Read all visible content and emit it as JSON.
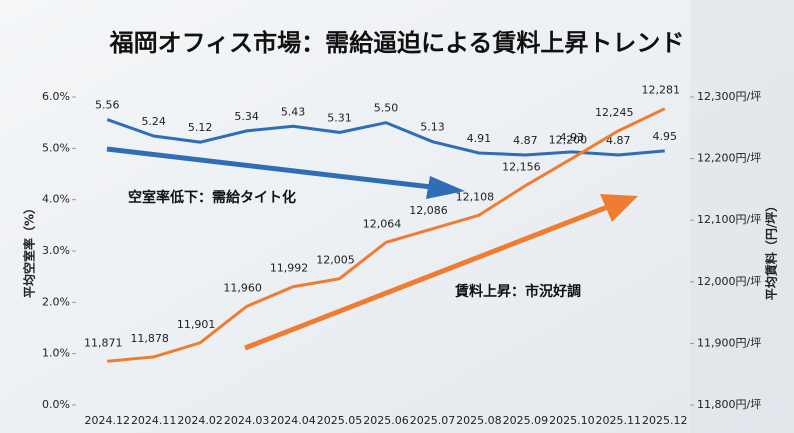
{
  "chart_data": {
    "type": "line",
    "title": "福岡オフィス市場：需給逼迫による賃料上昇トレンド",
    "y_label": "平均空室率（%）",
    "y2_label": "平均賃料（円/坪）",
    "annotations": [
      "空室率低下：需給タイト化",
      "賃料上昇：市況好調"
    ],
    "categories": [
      "2024.12",
      "2024.11",
      "2024.02",
      "2024.03",
      "2024.04",
      "2025.05",
      "2025.06",
      "2025.07",
      "2025.08",
      "2025.09",
      "2025.10",
      "2025.11",
      "2025.12"
    ],
    "series": [
      {
        "name": "平均空室率",
        "color": "#2f6db5",
        "values": [
          5.56,
          5.24,
          5.12,
          5.34,
          5.43,
          5.31,
          5.5,
          5.13,
          4.91,
          4.87,
          4.93,
          4.87,
          4.95
        ],
        "value_labels": [
          "5.56",
          "5.24",
          "5.12",
          "5.34",
          "5.43",
          "5.31",
          "5.50",
          "5.13",
          "4.91",
          "4.87",
          "4.93",
          "4.87",
          "4.95"
        ]
      },
      {
        "name": "平均賃料",
        "color": "#ee7d31",
        "axis": "y2",
        "values": [
          11871,
          11878,
          11901,
          11960,
          11992,
          12005,
          12064,
          12086,
          12108,
          12156,
          12200,
          12245,
          12281
        ],
        "value_labels": [
          "11,871",
          "11,878",
          "11,901",
          "11,960",
          "11,992",
          "12,005",
          "12,064",
          "12,086",
          "12,108",
          "12,156",
          "12,200",
          "12,245",
          "12,281"
        ]
      }
    ],
    "ylim": [
      0,
      6
    ],
    "yticks": [
      {
        "value": 0,
        "label": "0.0%"
      },
      {
        "value": 1,
        "label": "1.0%"
      },
      {
        "value": 2,
        "label": "2.0%"
      },
      {
        "value": 3,
        "label": "3.0%"
      },
      {
        "value": 4,
        "label": "4.0%"
      },
      {
        "value": 5,
        "label": "5.0%"
      },
      {
        "value": 6,
        "label": "6.0%"
      }
    ],
    "y2lim": [
      11800,
      12300
    ],
    "y2ticks": [
      {
        "value": 11800,
        "label": "11,800円/坪"
      },
      {
        "value": 11900,
        "label": "11,900円/坪"
      },
      {
        "value": 12000,
        "label": "12,000円/坪"
      },
      {
        "value": 12100,
        "label": "12,100円/坪"
      },
      {
        "value": 12200,
        "label": "12,200円/坪"
      },
      {
        "value": 12300,
        "label": "12,300円/坪"
      }
    ]
  }
}
